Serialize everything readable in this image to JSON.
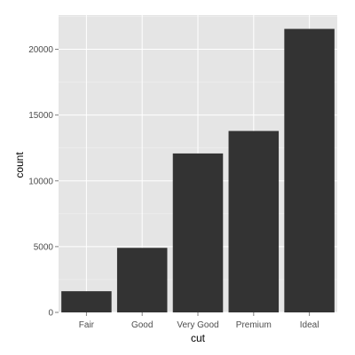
{
  "chart_data": {
    "type": "bar",
    "categories": [
      "Fair",
      "Good",
      "Very Good",
      "Premium",
      "Ideal"
    ],
    "values": [
      1610,
      4906,
      12082,
      13791,
      21551
    ],
    "xlabel": "cut",
    "ylabel": "count",
    "ylim": [
      0,
      22600
    ],
    "yticks": [
      0,
      5000,
      10000,
      15000,
      20000
    ],
    "yticks_labels": [
      "0",
      "5000",
      "10000",
      "15000",
      "20000"
    ],
    "grid": true,
    "colors": {
      "panel_bg": "#e5e5e5",
      "grid_major": "#ffffff",
      "grid_minor": "#f2f2f2",
      "bar_fill": "#333333",
      "tick_label": "#4d4d4d",
      "tick_mark": "#7f7f7f"
    }
  }
}
